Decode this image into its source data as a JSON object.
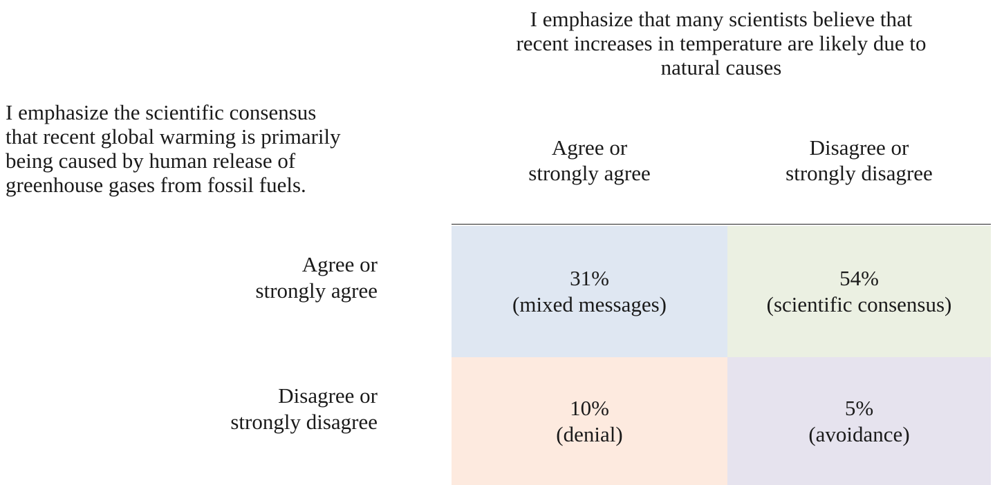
{
  "column_question": {
    "lines": [
      "I emphasize that many scientists believe that",
      "recent increases in temperature are likely due to",
      "natural causes"
    ]
  },
  "row_question": {
    "lines": [
      "I emphasize the scientific consensus",
      "that recent global warming is primarily",
      "being caused by human release of",
      "greenhouse gases from fossil fuels."
    ]
  },
  "column_labels": [
    {
      "lines": [
        "Agree or",
        "strongly agree"
      ]
    },
    {
      "lines": [
        "Disagree or",
        "strongly disagree"
      ]
    }
  ],
  "row_labels": [
    {
      "lines": [
        "Agree or",
        "strongly agree"
      ]
    },
    {
      "lines": [
        "Disagree or",
        "strongly disagree"
      ]
    }
  ],
  "table": {
    "rows": [
      [
        {
          "share": "31%",
          "note": "(mixed messages)"
        },
        {
          "share": "54%",
          "note": "(scientific consensus)"
        }
      ],
      [
        {
          "share": "10%",
          "note": "(denial)"
        },
        {
          "share": "5%",
          "note": "(avoidance)"
        }
      ]
    ]
  }
}
